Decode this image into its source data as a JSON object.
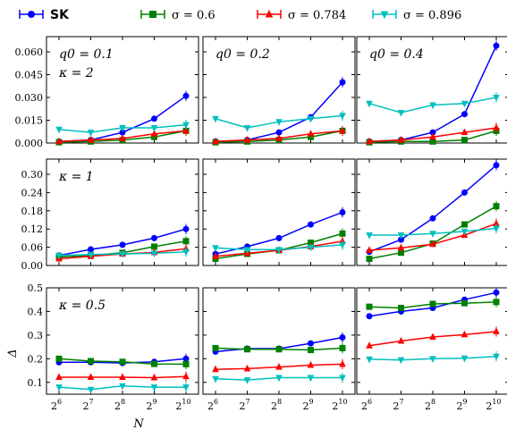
{
  "legend": [
    {
      "label": "SK",
      "color": "#0000ff",
      "marker": "circle",
      "bold": true
    },
    {
      "label": "σ = 0.6",
      "color": "#008000",
      "marker": "square"
    },
    {
      "label": "σ = 0.784",
      "color": "#ff0000",
      "marker": "triangle-up"
    },
    {
      "label": "σ = 0.896",
      "color": "#00bfbf",
      "marker": "triangle-down"
    }
  ],
  "xlabel": "N",
  "ylabel": "Δ",
  "x_ticks": [
    "2^6",
    "2^7",
    "2^8",
    "2^9",
    "2^10"
  ],
  "chart_data": [
    {
      "type": "line",
      "row": 0,
      "col": 0,
      "annotation": [
        "q0 = 0.1",
        "κ = 2"
      ],
      "ylim": [
        0,
        0.07
      ],
      "yticks": [
        "0.000",
        "0.015",
        "0.030",
        "0.045",
        "0.060"
      ],
      "x": [
        64,
        128,
        256,
        512,
        1024
      ],
      "series": [
        {
          "name": "SK",
          "values": [
            0.001,
            0.002,
            0.007,
            0.016,
            0.031
          ]
        },
        {
          "name": "σ = 0.6",
          "values": [
            0.0005,
            0.001,
            0.002,
            0.004,
            0.008
          ]
        },
        {
          "name": "σ = 0.784",
          "values": [
            0.001,
            0.002,
            0.003,
            0.006,
            0.008
          ]
        },
        {
          "name": "σ = 0.896",
          "values": [
            0.009,
            0.007,
            0.01,
            0.01,
            0.012
          ]
        }
      ]
    },
    {
      "type": "line",
      "row": 0,
      "col": 1,
      "annotation": [
        "q0 = 0.2"
      ],
      "ylim": [
        0,
        0.07
      ],
      "yticks": [],
      "x": [
        64,
        128,
        256,
        512,
        1024
      ],
      "series": [
        {
          "name": "SK",
          "values": [
            0.001,
            0.002,
            0.007,
            0.017,
            0.04
          ]
        },
        {
          "name": "σ = 0.6",
          "values": [
            0.0005,
            0.001,
            0.002,
            0.004,
            0.008
          ]
        },
        {
          "name": "σ = 0.784",
          "values": [
            0.001,
            0.002,
            0.003,
            0.006,
            0.008
          ]
        },
        {
          "name": "σ = 0.896",
          "values": [
            0.016,
            0.01,
            0.014,
            0.016,
            0.018
          ]
        }
      ]
    },
    {
      "type": "line",
      "row": 0,
      "col": 2,
      "annotation": [
        "q0 = 0.4"
      ],
      "ylim": [
        0,
        0.07
      ],
      "yticks": [],
      "x": [
        64,
        128,
        256,
        512,
        1024
      ],
      "series": [
        {
          "name": "SK",
          "values": [
            0.001,
            0.002,
            0.007,
            0.019,
            0.064
          ]
        },
        {
          "name": "σ = 0.6",
          "values": [
            0.0005,
            0.001,
            0.001,
            0.002,
            0.008
          ]
        },
        {
          "name": "σ = 0.784",
          "values": [
            0.001,
            0.002,
            0.004,
            0.007,
            0.01
          ]
        },
        {
          "name": "σ = 0.896",
          "values": [
            0.026,
            0.02,
            0.025,
            0.026,
            0.03
          ]
        }
      ]
    },
    {
      "type": "line",
      "row": 1,
      "col": 0,
      "annotation": [
        "κ = 1"
      ],
      "ylim": [
        0,
        0.35
      ],
      "yticks": [
        "0.00",
        "0.06",
        "0.12",
        "0.18",
        "0.24",
        "0.30"
      ],
      "x": [
        64,
        128,
        256,
        512,
        1024
      ],
      "series": [
        {
          "name": "SK",
          "values": [
            0.033,
            0.053,
            0.068,
            0.09,
            0.12
          ]
        },
        {
          "name": "σ = 0.6",
          "values": [
            0.028,
            0.033,
            0.042,
            0.062,
            0.08
          ]
        },
        {
          "name": "σ = 0.784",
          "values": [
            0.022,
            0.03,
            0.038,
            0.043,
            0.055
          ]
        },
        {
          "name": "σ = 0.896",
          "values": [
            0.033,
            0.036,
            0.038,
            0.04,
            0.045
          ]
        }
      ]
    },
    {
      "type": "line",
      "row": 1,
      "col": 1,
      "annotation": [],
      "ylim": [
        0,
        0.35
      ],
      "yticks": [],
      "x": [
        64,
        128,
        256,
        512,
        1024
      ],
      "series": [
        {
          "name": "SK",
          "values": [
            0.038,
            0.062,
            0.09,
            0.135,
            0.175
          ]
        },
        {
          "name": "σ = 0.6",
          "values": [
            0.022,
            0.038,
            0.05,
            0.075,
            0.105
          ]
        },
        {
          "name": "σ = 0.784",
          "values": [
            0.03,
            0.04,
            0.05,
            0.062,
            0.08
          ]
        },
        {
          "name": "σ = 0.896",
          "values": [
            0.058,
            0.052,
            0.052,
            0.06,
            0.068
          ]
        }
      ]
    },
    {
      "type": "line",
      "row": 1,
      "col": 2,
      "annotation": [],
      "ylim": [
        0,
        0.35
      ],
      "yticks": [],
      "x": [
        64,
        128,
        256,
        512,
        1024
      ],
      "series": [
        {
          "name": "SK",
          "values": [
            0.045,
            0.085,
            0.155,
            0.24,
            0.33
          ]
        },
        {
          "name": "σ = 0.6",
          "values": [
            0.022,
            0.042,
            0.072,
            0.135,
            0.195
          ]
        },
        {
          "name": "σ = 0.784",
          "values": [
            0.05,
            0.058,
            0.07,
            0.1,
            0.138
          ]
        },
        {
          "name": "σ = 0.896",
          "values": [
            0.1,
            0.1,
            0.105,
            0.112,
            0.122
          ]
        }
      ]
    },
    {
      "type": "line",
      "row": 2,
      "col": 0,
      "annotation": [
        "κ = 0.5"
      ],
      "ylim": [
        0.05,
        0.5
      ],
      "yticks": [
        "0.1",
        "0.2",
        "0.3",
        "0.4",
        "0.5"
      ],
      "x": [
        64,
        128,
        256,
        512,
        1024
      ],
      "series": [
        {
          "name": "SK",
          "values": [
            0.185,
            0.185,
            0.182,
            0.187,
            0.2
          ]
        },
        {
          "name": "σ = 0.6",
          "values": [
            0.2,
            0.19,
            0.187,
            0.178,
            0.177
          ]
        },
        {
          "name": "σ = 0.784",
          "values": [
            0.122,
            0.122,
            0.122,
            0.12,
            0.125
          ]
        },
        {
          "name": "σ = 0.896",
          "values": [
            0.08,
            0.07,
            0.085,
            0.08,
            0.08
          ]
        }
      ]
    },
    {
      "type": "line",
      "row": 2,
      "col": 1,
      "annotation": [],
      "ylim": [
        0.05,
        0.5
      ],
      "yticks": [],
      "x": [
        64,
        128,
        256,
        512,
        1024
      ],
      "series": [
        {
          "name": "SK",
          "values": [
            0.23,
            0.243,
            0.243,
            0.265,
            0.29
          ]
        },
        {
          "name": "σ = 0.6",
          "values": [
            0.245,
            0.24,
            0.24,
            0.237,
            0.245
          ]
        },
        {
          "name": "σ = 0.784",
          "values": [
            0.155,
            0.158,
            0.165,
            0.173,
            0.177
          ]
        },
        {
          "name": "σ = 0.896",
          "values": [
            0.115,
            0.11,
            0.12,
            0.12,
            0.12
          ]
        }
      ]
    },
    {
      "type": "line",
      "row": 2,
      "col": 2,
      "annotation": [],
      "ylim": [
        0.05,
        0.5
      ],
      "yticks": [],
      "x": [
        64,
        128,
        256,
        512,
        1024
      ],
      "series": [
        {
          "name": "SK",
          "values": [
            0.38,
            0.4,
            0.415,
            0.45,
            0.48
          ]
        },
        {
          "name": "σ = 0.6",
          "values": [
            0.42,
            0.415,
            0.432,
            0.435,
            0.44
          ]
        },
        {
          "name": "σ = 0.784",
          "values": [
            0.255,
            0.275,
            0.292,
            0.302,
            0.315
          ]
        },
        {
          "name": "σ = 0.896",
          "values": [
            0.198,
            0.195,
            0.2,
            0.202,
            0.21
          ]
        }
      ]
    }
  ]
}
